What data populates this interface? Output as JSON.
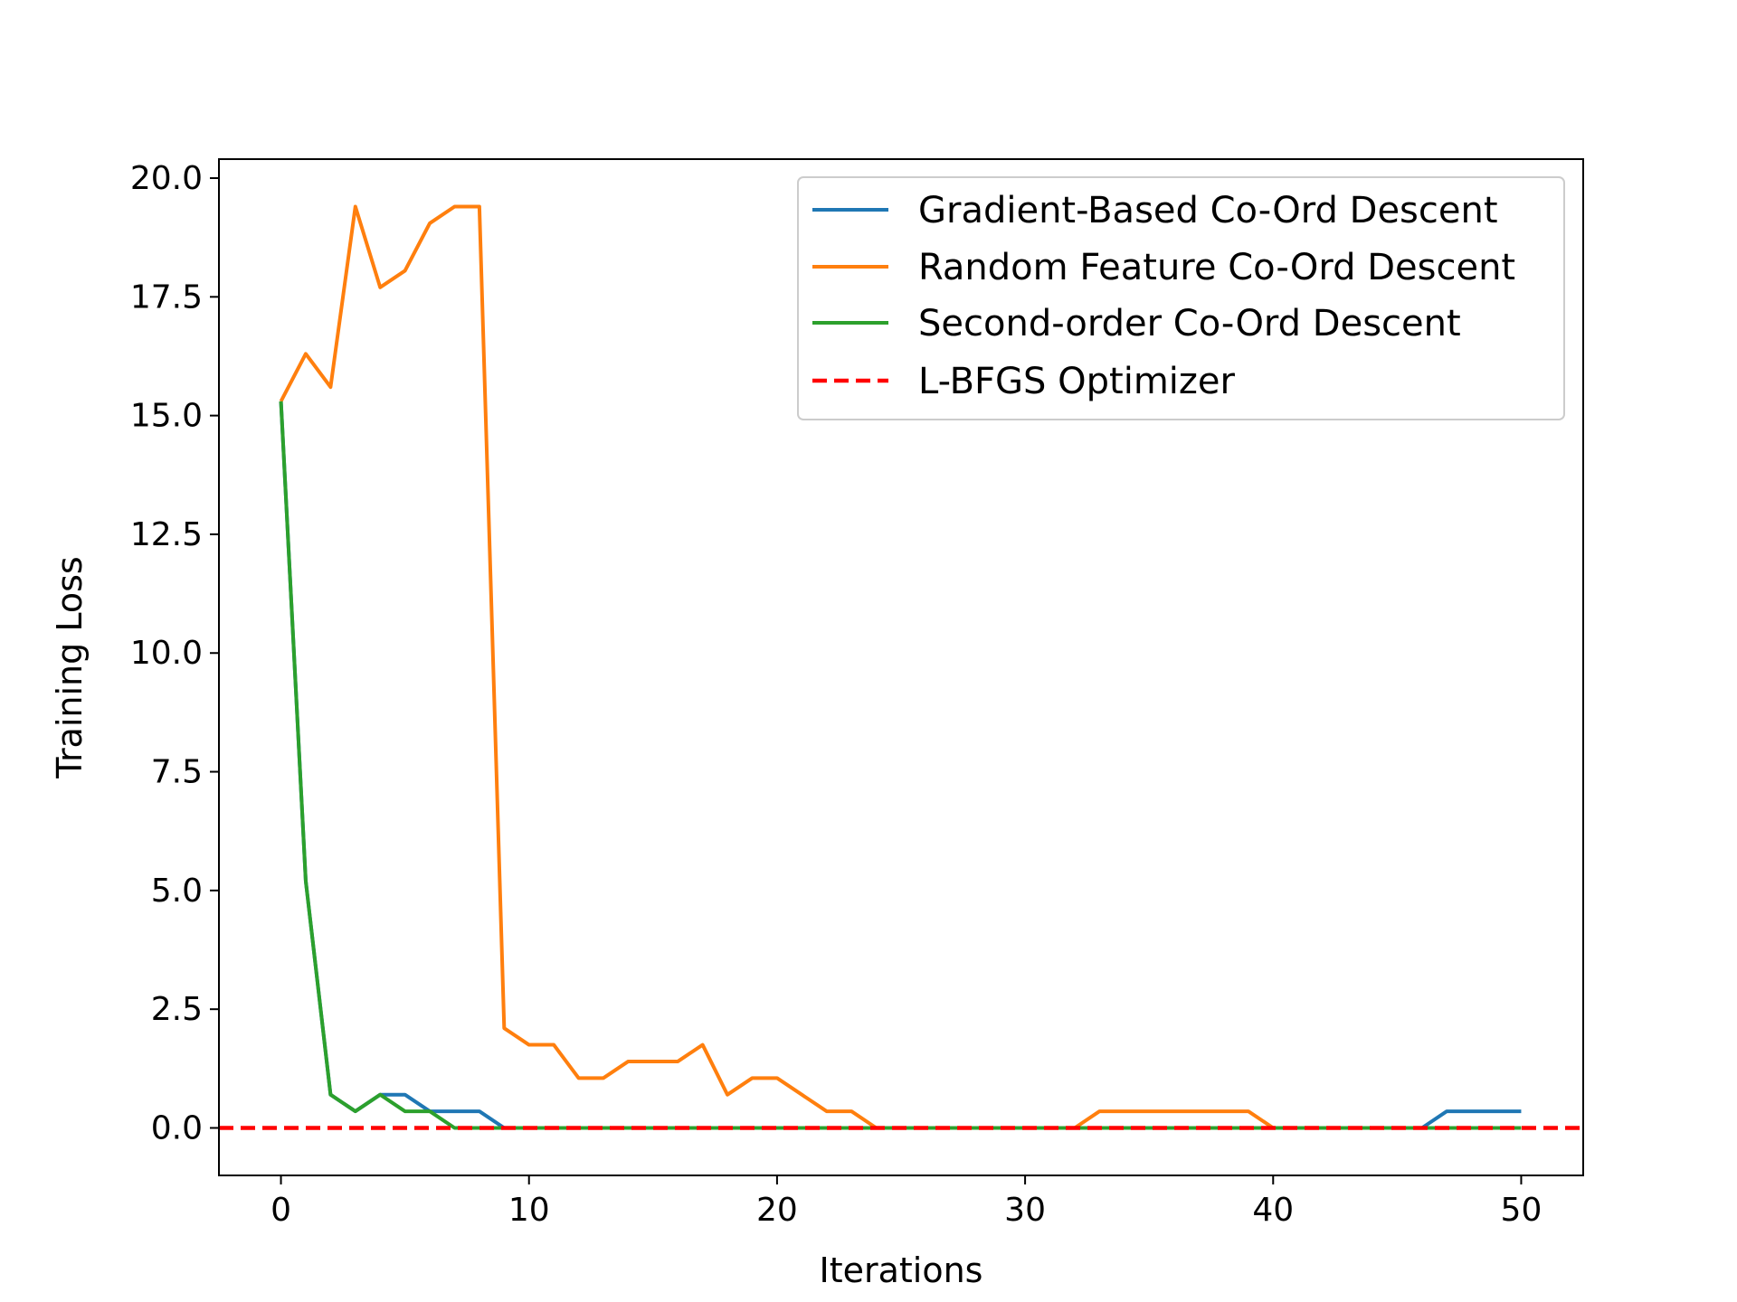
{
  "chart_data": {
    "type": "line",
    "title": "",
    "xlabel": "Iterations",
    "ylabel": "Training Loss",
    "xlim": [
      -2.5,
      52.5
    ],
    "ylim": [
      -1.0,
      20.4
    ],
    "xticks": [
      0,
      10,
      20,
      30,
      40,
      50
    ],
    "xtick_labels": [
      "0",
      "10",
      "20",
      "30",
      "40",
      "50"
    ],
    "yticks": [
      0.0,
      2.5,
      5.0,
      7.5,
      10.0,
      12.5,
      15.0,
      17.5,
      20.0
    ],
    "ytick_labels": [
      "0.0",
      "2.5",
      "5.0",
      "7.5",
      "10.0",
      "12.5",
      "15.0",
      "17.5",
      "20.0"
    ],
    "grid": false,
    "legend_position": "top-right",
    "series": [
      {
        "name": "Gradient-Based Co-Ord Descent",
        "color": "#1f77b4",
        "style": "solid",
        "x": [
          0,
          1,
          2,
          3,
          4,
          5,
          6,
          7,
          8,
          9,
          10,
          11,
          12,
          13,
          14,
          15,
          16,
          17,
          18,
          19,
          20,
          21,
          22,
          23,
          24,
          25,
          26,
          27,
          28,
          29,
          30,
          31,
          32,
          33,
          34,
          35,
          36,
          37,
          38,
          39,
          40,
          41,
          42,
          43,
          44,
          45,
          46,
          47,
          48,
          49,
          50
        ],
        "y": [
          15.3,
          5.2,
          0.7,
          0.35,
          0.7,
          0.7,
          0.35,
          0.35,
          0.35,
          0,
          0,
          0,
          0,
          0,
          0,
          0,
          0,
          0,
          0,
          0,
          0,
          0,
          0,
          0,
          0,
          0,
          0,
          0,
          0,
          0,
          0,
          0,
          0,
          0,
          0,
          0,
          0,
          0,
          0,
          0,
          0,
          0,
          0,
          0,
          0,
          0,
          0,
          0.35,
          0.35,
          0.35,
          0.35
        ]
      },
      {
        "name": "Random Feature Co-Ord Descent",
        "color": "#ff7f0e",
        "style": "solid",
        "x": [
          0,
          1,
          2,
          3,
          4,
          5,
          6,
          7,
          8,
          9,
          10,
          11,
          12,
          13,
          14,
          15,
          16,
          17,
          18,
          19,
          20,
          21,
          22,
          23,
          24,
          25,
          26,
          27,
          28,
          29,
          30,
          31,
          32,
          33,
          34,
          35,
          36,
          37,
          38,
          39,
          40,
          41,
          42,
          43,
          44,
          45,
          46,
          47,
          48,
          49,
          50
        ],
        "y": [
          15.3,
          16.3,
          15.6,
          19.4,
          17.7,
          18.05,
          19.05,
          19.4,
          19.4,
          2.1,
          1.75,
          1.75,
          1.05,
          1.05,
          1.4,
          1.4,
          1.4,
          1.75,
          0.7,
          1.05,
          1.05,
          0.7,
          0.35,
          0.35,
          0,
          0,
          0,
          0,
          0,
          0,
          0,
          0,
          0,
          0.35,
          0.35,
          0.35,
          0.35,
          0.35,
          0.35,
          0.35,
          0,
          0,
          0,
          0,
          0,
          0,
          0,
          0,
          0,
          0,
          0
        ]
      },
      {
        "name": "Second-order Co-Ord Descent",
        "color": "#2ca02c",
        "style": "solid",
        "x": [
          0,
          1,
          2,
          3,
          4,
          5,
          6,
          7,
          8,
          9,
          10,
          11,
          12,
          13,
          14,
          15,
          16,
          17,
          18,
          19,
          20,
          21,
          22,
          23,
          24,
          25,
          26,
          27,
          28,
          29,
          30,
          31,
          32,
          33,
          34,
          35,
          36,
          37,
          38,
          39,
          40,
          41,
          42,
          43,
          44,
          45,
          46,
          47,
          48,
          49,
          50
        ],
        "y": [
          15.3,
          5.2,
          0.7,
          0.35,
          0.7,
          0.35,
          0.35,
          0,
          0,
          0,
          0,
          0,
          0,
          0,
          0,
          0,
          0,
          0,
          0,
          0,
          0,
          0,
          0,
          0,
          0,
          0,
          0,
          0,
          0,
          0,
          0,
          0,
          0,
          0,
          0,
          0,
          0,
          0,
          0,
          0,
          0,
          0,
          0,
          0,
          0,
          0,
          0,
          0,
          0,
          0,
          0
        ]
      },
      {
        "name": "L-BFGS Optimizer",
        "color": "#ff0000",
        "style": "dashed",
        "x": [
          -2.5,
          52.5
        ],
        "y": [
          0,
          0
        ]
      }
    ]
  }
}
